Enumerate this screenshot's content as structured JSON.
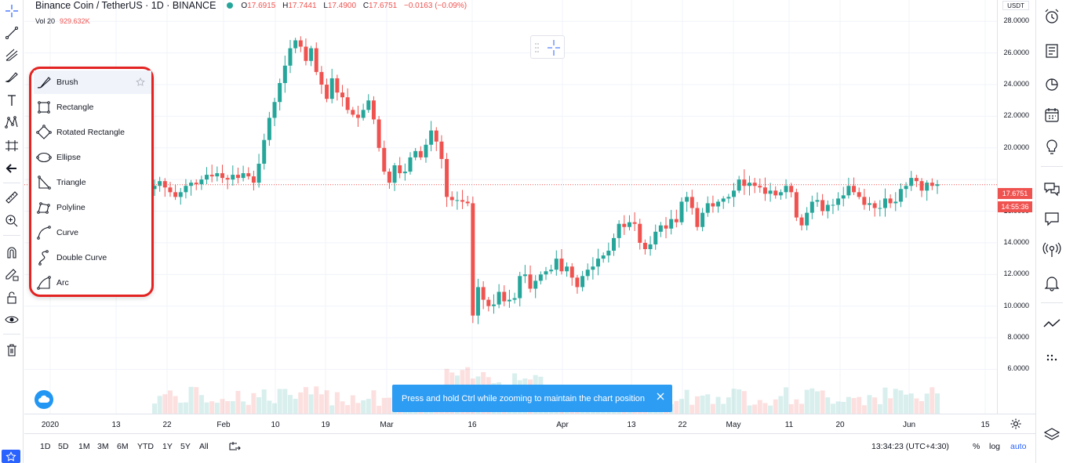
{
  "legend": {
    "symbol": "Binance Coin / TetherUS · 1D · BINANCE",
    "o_label": "O",
    "o": "17.6915",
    "h_label": "H",
    "h": "17.7441",
    "l_label": "L",
    "l": "17.4900",
    "c_label": "C",
    "c": "17.6751",
    "change": "−0.0163 (−0.09%)",
    "vol_label": "Vol 20",
    "vol": "929.632K"
  },
  "price_axis": {
    "currency": "USDT",
    "labels": [
      "28.0000",
      "26.0000",
      "24.0000",
      "22.0000",
      "20.0000",
      "16.0000",
      "14.0000",
      "12.0000",
      "10.0000",
      "8.0000",
      "6.0000"
    ],
    "last_price": "17.6751",
    "countdown": "14:55:36"
  },
  "time_axis": {
    "labels": [
      "2020",
      "13",
      "22",
      "Feb",
      "10",
      "19",
      "Mar",
      "16",
      "Apr",
      "13",
      "22",
      "May",
      "11",
      "20",
      "Jun",
      "15"
    ]
  },
  "bottom_bar": {
    "timeframes": [
      "1D",
      "5D",
      "1M",
      "3M",
      "6M",
      "YTD",
      "1Y",
      "5Y",
      "All"
    ],
    "clock": "13:34:23 (UTC+4:30)",
    "percent": "%",
    "log": "log",
    "auto": "auto"
  },
  "draw_menu": {
    "items": [
      {
        "label": "Brush",
        "icon": "brush-icon"
      },
      {
        "label": "Rectangle",
        "icon": "rectangle-icon"
      },
      {
        "label": "Rotated Rectangle",
        "icon": "rotated-rectangle-icon"
      },
      {
        "label": "Ellipse",
        "icon": "ellipse-icon"
      },
      {
        "label": "Triangle",
        "icon": "triangle-icon"
      },
      {
        "label": "Polyline",
        "icon": "polyline-icon"
      },
      {
        "label": "Curve",
        "icon": "curve-icon"
      },
      {
        "label": "Double Curve",
        "icon": "double-curve-icon"
      },
      {
        "label": "Arc",
        "icon": "arc-icon"
      }
    ]
  },
  "toast": {
    "message": "Press and hold Ctrl while zooming to maintain the chart position"
  },
  "colors": {
    "up": "#26a69a",
    "down": "#ef5350",
    "accent": "#2962ff",
    "highlight": "#e32322",
    "toast": "#2d9cf3"
  },
  "chart_data": {
    "type": "candlestick",
    "title": "Binance Coin / TetherUS · 1D · BINANCE",
    "ylabel": "USDT",
    "ylim": [
      5,
      29
    ],
    "x_ticks": [
      "2020",
      "13",
      "22",
      "Feb",
      "10",
      "19",
      "Mar",
      "16",
      "Apr",
      "13",
      "22",
      "May",
      "11",
      "20",
      "Jun",
      "15"
    ],
    "close": [
      17.6,
      17.9,
      17.5,
      17.2,
      16.9,
      17.2,
      17.6,
      17.8,
      17.7,
      18.0,
      18.3,
      18.2,
      18.4,
      18.1,
      18.0,
      18.3,
      18.1,
      18.4,
      18.2,
      17.8,
      19.0,
      20.5,
      21.9,
      22.9,
      24.1,
      25.2,
      26.3,
      26.8,
      26.4,
      25.5,
      26.3,
      24.8,
      24.0,
      23.1,
      24.4,
      23.5,
      23.2,
      22.4,
      22.1,
      21.9,
      22.4,
      23.0,
      21.8,
      20.0,
      18.5,
      17.8,
      18.9,
      18.4,
      18.5,
      19.4,
      19.8,
      19.4,
      20.2,
      21.1,
      20.4,
      19.3,
      16.9,
      16.7,
      16.7,
      16.6,
      16.5,
      9.4,
      11.2,
      10.4,
      10.0,
      10.1,
      10.9,
      10.3,
      10.4,
      10.5,
      11.9,
      12.0,
      11.1,
      11.6,
      12.0,
      12.2,
      12.3,
      13.0,
      12.2,
      12.5,
      11.8,
      11.2,
      11.9,
      12.3,
      12.5,
      13.0,
      13.2,
      13.5,
      14.3,
      15.2,
      15.0,
      15.3,
      15.2,
      14.0,
      13.6,
      13.9,
      14.7,
      15.1,
      14.9,
      15.5,
      15.3,
      16.6,
      16.9,
      16.2,
      15.0,
      15.9,
      16.5,
      16.3,
      16.6,
      16.8,
      16.9,
      17.3,
      18.0,
      17.6,
      17.8,
      17.6,
      17.5,
      17.1,
      17.3,
      17.0,
      17.2,
      17.6,
      17.2,
      15.6,
      15.1,
      15.9,
      16.6,
      16.7,
      16.0,
      16.4,
      16.4,
      16.8,
      17.0,
      17.6,
      17.2,
      16.9,
      16.4,
      16.5,
      16.2,
      16.2,
      16.8,
      16.5,
      16.6,
      17.4,
      17.6,
      18.1,
      17.9,
      17.3,
      17.8,
      17.6,
      17.7
    ]
  }
}
